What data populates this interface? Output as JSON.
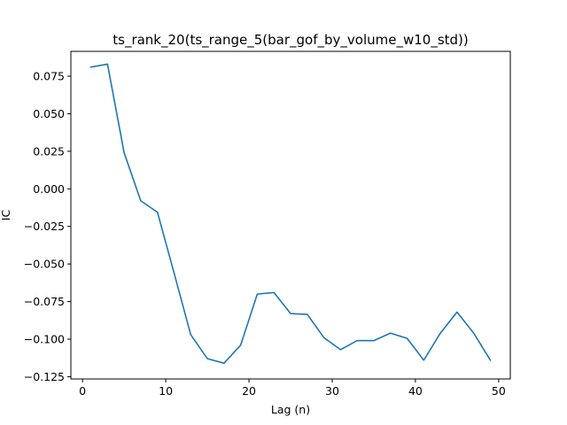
{
  "chart_data": {
    "type": "line",
    "title": "ts_rank_20(ts_range_5(bar_gof_by_volume_w10_std))",
    "xlabel": "Lag (n)",
    "ylabel": "IC",
    "xlim": [
      -1.4,
      51.4
    ],
    "ylim": [
      -0.1265,
      0.0915
    ],
    "xticks": [
      0,
      10,
      20,
      30,
      40,
      50
    ],
    "yticks": [
      -0.125,
      -0.1,
      -0.075,
      -0.05,
      -0.025,
      0.0,
      0.025,
      0.05,
      0.075
    ],
    "ytick_labels": [
      "−0.125",
      "−0.100",
      "−0.075",
      "−0.050",
      "−0.025",
      "0.000",
      "0.025",
      "0.050",
      "0.075"
    ],
    "grid": false,
    "color": "#1f77b4",
    "series": [
      {
        "x": [
          1,
          3,
          5,
          7,
          9,
          11,
          13,
          15,
          17,
          19,
          21,
          23,
          25,
          27,
          29,
          31,
          33,
          35,
          37,
          39,
          41,
          43,
          45,
          47,
          49
        ],
        "values": [
          0.081,
          0.083,
          0.024,
          -0.008,
          -0.0155,
          -0.056,
          -0.097,
          -0.113,
          -0.116,
          -0.104,
          -0.07,
          -0.069,
          -0.083,
          -0.0835,
          -0.099,
          -0.107,
          -0.101,
          -0.101,
          -0.096,
          -0.0995,
          -0.114,
          -0.096,
          -0.082,
          -0.096,
          -0.114
        ]
      }
    ]
  }
}
